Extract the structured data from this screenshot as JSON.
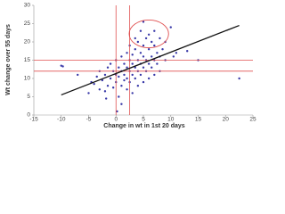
{
  "chart_data": {
    "type": "scatter",
    "x_label": "Change in wt in 1st 20 days",
    "y_label": "Wt change over 55 days",
    "color": "#3838a8",
    "x": [
      -10,
      -9.7,
      -7,
      -5,
      -4.5,
      -4,
      -3.5,
      -3,
      -3,
      -2.5,
      -2,
      -2,
      -1.5,
      -1.5,
      -1,
      -1,
      -0.5,
      -0.5,
      0,
      0,
      0,
      0.5,
      0.5,
      0.5,
      1,
      1,
      1,
      1,
      1.5,
      1.5,
      1.5,
      2,
      2,
      2,
      2,
      2.5,
      2.5,
      2.5,
      2.5,
      3,
      3,
      3,
      3,
      3.5,
      3.5,
      3.5,
      3.5,
      4,
      4,
      4,
      4,
      4.5,
      4.5,
      4.5,
      4.5,
      5,
      5,
      5,
      5,
      5,
      5.5,
      5.5,
      5.5,
      6,
      6,
      6,
      6,
      6.5,
      6.5,
      6.5,
      7,
      7,
      7,
      7,
      7.5,
      7.5,
      8,
      8,
      8,
      8.5,
      9,
      9,
      10,
      10.5,
      11,
      13,
      15,
      22.5,
      0.2,
      -1.8
    ],
    "values": [
      13.5,
      13.3,
      11,
      6,
      9,
      8.5,
      10.5,
      7,
      12,
      9.5,
      11,
      6.5,
      13,
      8,
      10,
      14,
      12,
      7.5,
      11,
      9,
      15,
      13,
      10.5,
      5,
      12,
      8,
      16,
      3,
      11,
      14,
      9.5,
      13,
      10,
      17,
      7,
      12,
      15,
      19,
      9,
      11,
      14,
      16.5,
      6,
      13,
      18,
      10,
      21,
      12,
      15,
      20,
      8,
      14,
      17,
      23,
      11,
      13,
      16,
      19,
      25.5,
      9,
      15,
      21,
      12,
      14,
      18,
      22,
      10,
      16,
      20,
      13,
      15,
      19,
      23,
      11,
      17,
      14,
      16,
      21,
      12,
      18,
      15,
      20,
      24,
      16,
      17,
      17.5,
      15,
      10,
      1,
      4.5
    ],
    "trend_line": {
      "color": "#111111",
      "x": [
        -10,
        22.5
      ],
      "y": [
        5.5,
        24.5
      ]
    },
    "reference_lines": {
      "color": "#e05050",
      "x": [
        0,
        2.5
      ],
      "y": [
        15,
        12
      ]
    },
    "highlight": {
      "color": "#e05050",
      "cx": 6,
      "cy": 22.2,
      "rx": 3.6,
      "ry": 3.8
    },
    "xlim": [
      -15,
      25
    ],
    "xticks": [
      -15,
      -10,
      -5,
      0,
      5,
      10,
      15,
      20,
      25
    ],
    "ylim": [
      0,
      30
    ],
    "yticks": [
      0,
      5,
      10,
      15,
      20,
      25,
      30
    ]
  }
}
